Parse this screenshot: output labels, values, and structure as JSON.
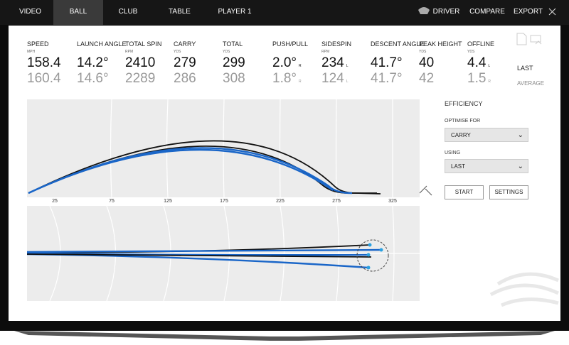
{
  "nav": {
    "tabs": [
      "VIDEO",
      "BALL",
      "CLUB",
      "TABLE",
      "PLAYER 1"
    ],
    "active": "BALL",
    "club": "DRIVER",
    "actions": [
      "COMPARE",
      "EXPORT"
    ]
  },
  "stats": [
    {
      "label": "SPEED",
      "unit": "MPH",
      "last": "158.4",
      "average": "160.4"
    },
    {
      "label": "LAUNCH ANGLE",
      "last": "14.2°",
      "average": "14.6°"
    },
    {
      "label": "TOTAL SPIN",
      "unit": "RPM",
      "last": "2410",
      "average": "2289"
    },
    {
      "label": "CARRY",
      "unit": "YDS",
      "last": "279",
      "average": "286"
    },
    {
      "label": "TOTAL",
      "unit": "YDS",
      "last": "299",
      "average": "308"
    },
    {
      "label": "PUSH/PULL",
      "last": "2.0°",
      "last_dir": "R",
      "average": "1.8°",
      "average_dir": "R"
    },
    {
      "label": "SIDESPIN",
      "unit": "RPM",
      "last": "234",
      "last_dir": "L",
      "average": "124",
      "average_dir": "L"
    },
    {
      "label": "DESCENT ANGLE",
      "last": "41.7°",
      "average": "41.7°"
    },
    {
      "label": "PEAK HEIGHT",
      "unit": "YDS",
      "last": "40",
      "average": "42"
    },
    {
      "label": "OFFLINE",
      "unit": "YDS",
      "last": "4.4",
      "last_dir": "L",
      "average": "1.5",
      "average_dir": "R"
    }
  ],
  "row_labels": {
    "last": "LAST",
    "average": "AVERAGE"
  },
  "distance_axis": [
    "25",
    "75",
    "125",
    "175",
    "225",
    "275",
    "325"
  ],
  "panel": {
    "title": "EFFICIENCY",
    "optimise_label": "OPTIMISE FOR",
    "optimise_value": "CARRY",
    "using_label": "USING",
    "using_value": "LAST",
    "buttons": [
      "START",
      "SETTINGS"
    ]
  }
}
